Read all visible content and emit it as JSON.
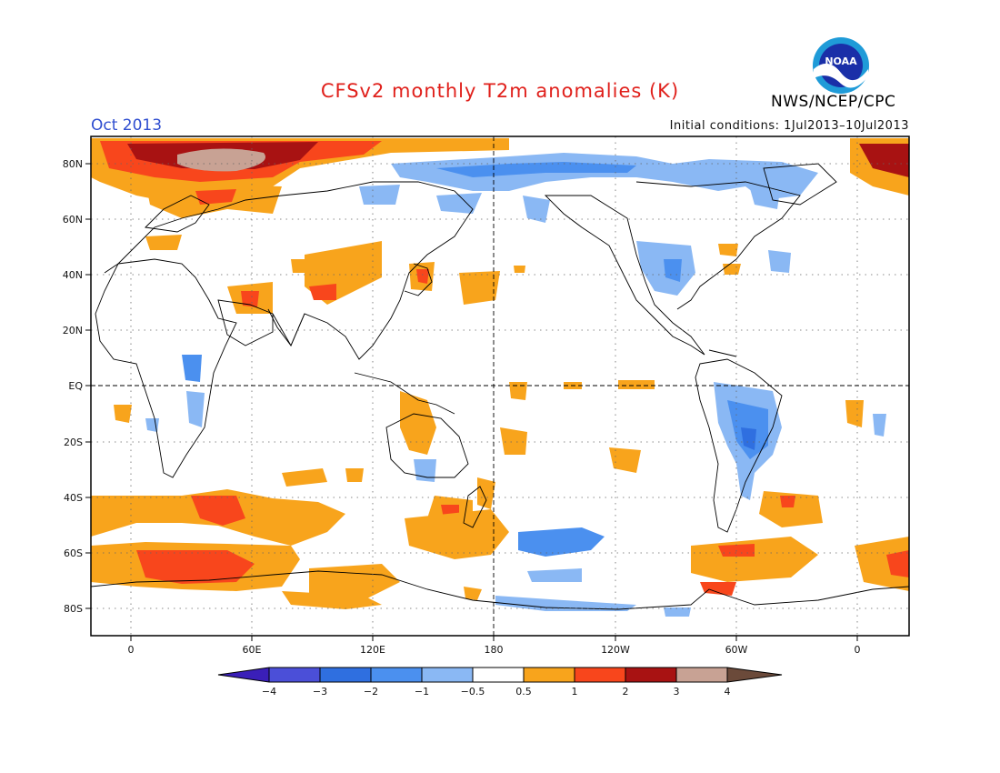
{
  "header": {
    "title": "CFSv2 monthly T2m anomalies (K)",
    "month": "Oct 2013",
    "initial_conditions": "Initial conditions: 1Jul2013–10Jul2013",
    "agency": "NWS/NCEP/CPC",
    "logo_text": "NOAA"
  },
  "map": {
    "lat_labels": [
      "80N",
      "60N",
      "40N",
      "20N",
      "EQ",
      "20S",
      "40S",
      "60S",
      "80S"
    ],
    "lon_labels": [
      "0",
      "60E",
      "120E",
      "180",
      "120W",
      "60W",
      "0"
    ]
  },
  "colorbar": {
    "labels": [
      "−4",
      "−3",
      "−2",
      "−1",
      "−0.5",
      "0.5",
      "1",
      "2",
      "3",
      "4"
    ],
    "colors": [
      "#3a1fb8",
      "#4b4fd8",
      "#2f6fe0",
      "#4b90ef",
      "#8ab8f4",
      "#ffffff",
      "#f8a41c",
      "#f8461c",
      "#a81212",
      "#c8a294",
      "#6b4a3a"
    ]
  }
}
